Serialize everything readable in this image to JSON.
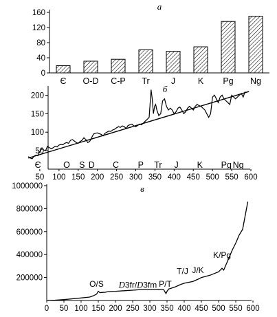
{
  "chart_data": [
    {
      "type": "bar",
      "panel_letter": "а",
      "categories": [
        "Є",
        "O-D",
        "C-P",
        "Tr",
        "J",
        "K",
        "Pg",
        "Ng"
      ],
      "values": [
        19,
        31,
        36,
        61,
        57,
        69,
        136,
        150
      ],
      "ylim": [
        0,
        160
      ],
      "yticks": [
        0,
        40,
        80,
        120,
        160
      ],
      "bar_fill": "hatched"
    },
    {
      "type": "line",
      "panel_letter": "б",
      "xlim": [
        0,
        600
      ],
      "ylim": [
        0,
        225
      ],
      "xticks": [
        50,
        100,
        150,
        200,
        250,
        300,
        350,
        400,
        450,
        500,
        550,
        600
      ],
      "yticks": [
        50,
        100,
        150,
        200
      ],
      "period_labels": [
        {
          "text": "Є",
          "x": 45
        },
        {
          "text": "O",
          "x": 120
        },
        {
          "text": "S",
          "x": 160
        },
        {
          "text": "D",
          "x": 185
        },
        {
          "text": "C",
          "x": 248
        },
        {
          "text": "P",
          "x": 313
        },
        {
          "text": "Tr",
          "x": 358
        },
        {
          "text": "J",
          "x": 406
        },
        {
          "text": "K",
          "x": 467
        },
        {
          "text": "Pg",
          "x": 536
        },
        {
          "text": "Ng",
          "x": 567
        }
      ],
      "series": [
        {
          "x": [
            20,
            25,
            30,
            35,
            40,
            45,
            50,
            55,
            60,
            65,
            70,
            75,
            80,
            85,
            90,
            95,
            100,
            105,
            110,
            115,
            120,
            125,
            130,
            135,
            140,
            145,
            150,
            155,
            160,
            165,
            170,
            175,
            180,
            185,
            190,
            195,
            200,
            205,
            210,
            215,
            220,
            225,
            230,
            235,
            240,
            245,
            250,
            255,
            260,
            265,
            270,
            275,
            280,
            285,
            290,
            295,
            300,
            305,
            310,
            315,
            320,
            325,
            330,
            335,
            340,
            343,
            346,
            349,
            352,
            355,
            360,
            365,
            370,
            375,
            380,
            385,
            390,
            395,
            400,
            405,
            410,
            415,
            420,
            425,
            430,
            435,
            440,
            445,
            450,
            455,
            460,
            465,
            470,
            475,
            480,
            485,
            490,
            495,
            500,
            505,
            510,
            515,
            520,
            525,
            530,
            535,
            540,
            545,
            550,
            555,
            560,
            565,
            570,
            575,
            580,
            585
          ],
          "y": [
            34,
            30,
            28,
            35,
            38,
            36,
            48,
            55,
            52,
            50,
            62,
            58,
            55,
            58,
            62,
            60,
            65,
            67,
            66,
            70,
            72,
            70,
            78,
            80,
            76,
            72,
            70,
            75,
            78,
            85,
            80,
            72,
            75,
            85,
            95,
            97,
            98,
            96,
            94,
            90,
            97,
            100,
            103,
            102,
            106,
            108,
            112,
            115,
            113,
            117,
            115,
            110,
            118,
            120,
            122,
            117,
            115,
            118,
            122,
            120,
            125,
            130,
            135,
            140,
            215,
            190,
            150,
            170,
            175,
            160,
            145,
            150,
            185,
            190,
            170,
            160,
            165,
            160,
            150,
            155,
            165,
            168,
            160,
            150,
            155,
            165,
            170,
            165,
            160,
            170,
            175,
            172,
            170,
            165,
            160,
            150,
            140,
            150,
            195,
            200,
            190,
            180,
            195,
            200,
            190,
            185,
            180,
            175,
            200,
            195,
            190,
            195,
            200,
            205,
            195,
            210
          ]
        },
        {
          "x": [
            20,
            595
          ],
          "y": [
            30,
            210
          ]
        }
      ]
    },
    {
      "type": "line",
      "panel_letter": "в",
      "xlim": [
        0,
        600
      ],
      "ylim": [
        0,
        1000000
      ],
      "xticks": [
        0,
        50,
        100,
        150,
        200,
        250,
        300,
        350,
        400,
        450,
        500,
        550,
        600
      ],
      "yticks": [
        200000,
        400000,
        600000,
        800000,
        1000000
      ],
      "ytick_labels": [
        "200000",
        "400000",
        "600000",
        "800000",
        "1000000"
      ],
      "annotations": [
        {
          "text": "O/S",
          "x": 145,
          "y": 120000,
          "style": "plain"
        },
        {
          "text": "D3fr/D3fm",
          "x": 265,
          "y": 110000,
          "style": "mixed"
        },
        {
          "text": "P/T",
          "x": 345,
          "y": 120000,
          "style": "plain"
        },
        {
          "text": "T/J",
          "x": 395,
          "y": 230000,
          "style": "plain"
        },
        {
          "text": "J/K",
          "x": 440,
          "y": 240000,
          "style": "plain"
        },
        {
          "text": "K/Pg",
          "x": 510,
          "y": 370000,
          "style": "plain"
        }
      ],
      "series": [
        {
          "x": [
            0,
            25,
            50,
            75,
            100,
            125,
            135,
            145,
            150,
            155,
            160,
            170,
            180,
            200,
            225,
            250,
            275,
            300,
            325,
            340,
            347,
            350,
            355,
            360,
            375,
            390,
            400,
            425,
            440,
            450,
            475,
            500,
            510,
            515,
            520,
            530,
            540,
            550,
            560,
            570,
            575,
            580,
            585
          ],
          "y": [
            0,
            3000,
            8000,
            15000,
            22000,
            30000,
            40000,
            55000,
            80000,
            68000,
            70000,
            72000,
            78000,
            80000,
            85000,
            90000,
            95000,
            95000,
            98000,
            95000,
            60000,
            80000,
            100000,
            105000,
            120000,
            140000,
            150000,
            165000,
            185000,
            200000,
            220000,
            250000,
            280000,
            265000,
            300000,
            370000,
            440000,
            500000,
            570000,
            620000,
            700000,
            780000,
            860000
          ]
        }
      ]
    }
  ]
}
